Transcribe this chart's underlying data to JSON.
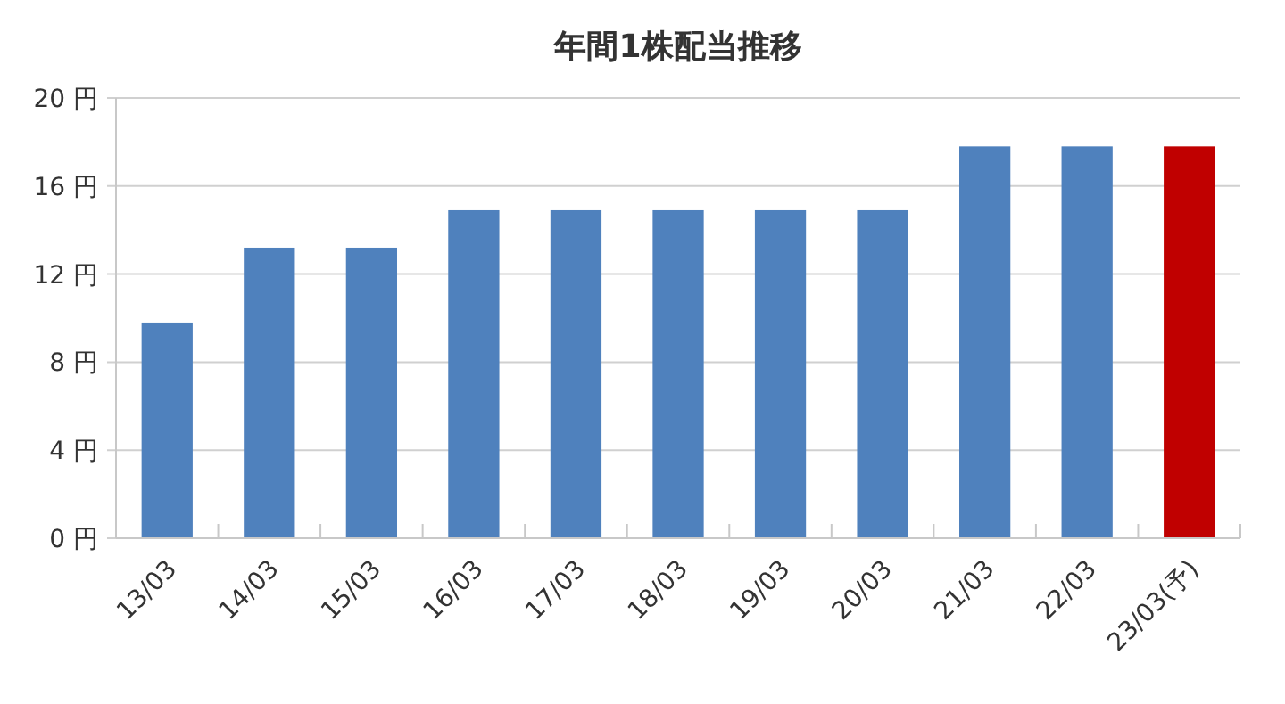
{
  "chart_data": {
    "type": "bar",
    "title": "年間1株配当推移",
    "categories": [
      "13/03",
      "14/03",
      "15/03",
      "16/03",
      "17/03",
      "18/03",
      "19/03",
      "20/03",
      "21/03",
      "22/03",
      "23/03(予)"
    ],
    "values": [
      9.8,
      13.2,
      13.2,
      14.9,
      14.9,
      14.9,
      14.9,
      14.9,
      17.8,
      17.8,
      17.8
    ],
    "colors": [
      "#4f81bd",
      "#4f81bd",
      "#4f81bd",
      "#4f81bd",
      "#4f81bd",
      "#4f81bd",
      "#4f81bd",
      "#4f81bd",
      "#4f81bd",
      "#4f81bd",
      "#c00000"
    ],
    "ylim": [
      0,
      20
    ],
    "yticks": [
      {
        "value": 0,
        "label": "0 円"
      },
      {
        "value": 4,
        "label": "4 円"
      },
      {
        "value": 8,
        "label": "8 円"
      },
      {
        "value": 12,
        "label": "12 円"
      },
      {
        "value": 16,
        "label": "16 円"
      },
      {
        "value": 20,
        "label": "20 円"
      }
    ],
    "grid": "y"
  }
}
